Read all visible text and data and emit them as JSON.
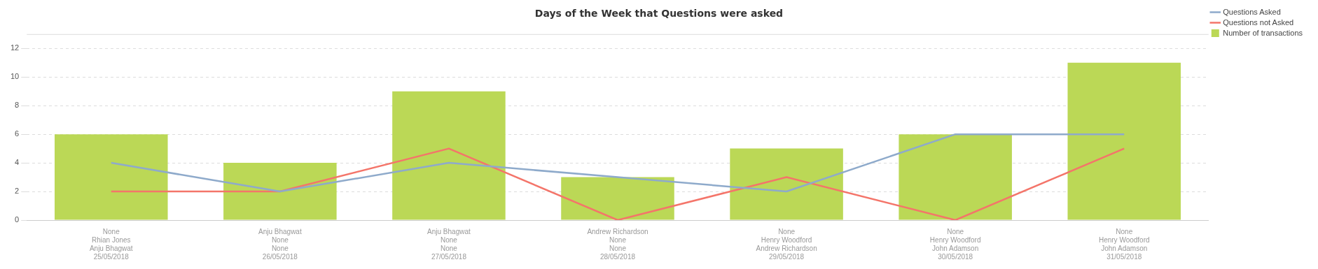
{
  "chart_data": {
    "type": "bar",
    "title": "Days of the Week that Questions were asked",
    "categories": [
      "None\nRhian Jones\nAnju Bhagwat\n25/05/2018",
      "Anju Bhagwat\nNone\nNone\n26/05/2018",
      "Anju Bhagwat\nNone\nNone\n27/05/2018",
      "Andrew Richardson\nNone\nNone\n28/05/2018",
      "None\nHenry Woodford\nAndrew Richardson\n29/05/2018",
      "None\nHenry Woodford\nJohn Adamson\n30/05/2018",
      "None\nHenry Woodford\nJohn Adamson\n31/05/2018"
    ],
    "series": [
      {
        "name": "Questions Asked",
        "type": "line",
        "color": "#8eaacb",
        "values": [
          4,
          2,
          4,
          3,
          2,
          6,
          6
        ]
      },
      {
        "name": "Questions not Asked",
        "type": "line",
        "color": "#f4756a",
        "values": [
          2,
          2,
          5,
          0,
          3,
          0,
          5
        ]
      },
      {
        "name": "Number of transactions",
        "color": "#bbd856",
        "values": [
          6,
          4,
          9,
          3,
          5,
          6,
          11
        ]
      }
    ],
    "ylim": [
      0,
      13
    ],
    "yticks": [
      0,
      2,
      4,
      6,
      8,
      10,
      12
    ],
    "grid": "y",
    "legend": "top right",
    "marker": "none"
  }
}
